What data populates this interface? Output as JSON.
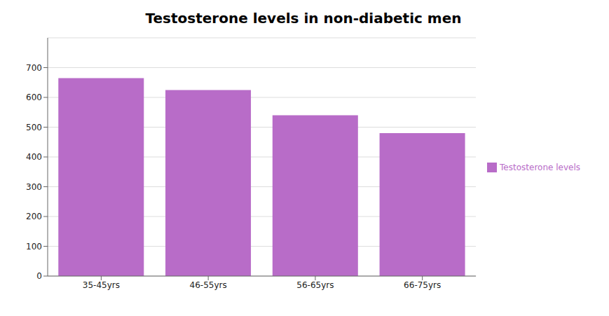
{
  "chart_data": {
    "type": "bar",
    "title": "Testosterone levels in non-diabetic men",
    "categories": [
      "35-45yrs",
      "46-55yrs",
      "56-65yrs",
      "66-75yrs"
    ],
    "series": [
      {
        "name": "Testosterone levels",
        "color": "#b86cc8",
        "values": [
          665,
          625,
          540,
          480
        ]
      }
    ],
    "ylim": [
      0,
      800
    ],
    "yticks": [
      0,
      100,
      200,
      300,
      400,
      500,
      600,
      700
    ],
    "grid": true,
    "legend": "right"
  }
}
